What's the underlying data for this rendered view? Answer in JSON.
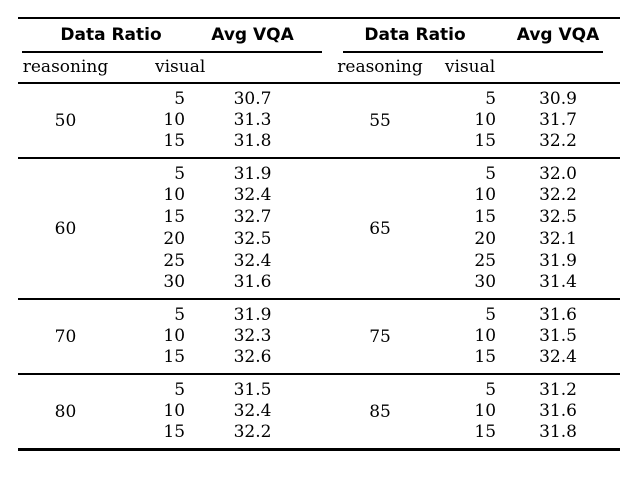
{
  "colors": {
    "background": "#ffffff",
    "text": "#000000",
    "rule": "#000000"
  },
  "table": {
    "left": {
      "header_group": "Data Ratio",
      "header_metric": "Avg VQA",
      "subheader_reasoning": "reasoning",
      "subheader_visual": "visual",
      "groups": [
        {
          "reasoning": "50",
          "rows": [
            {
              "visual": "5",
              "avg_vqa": "30.7"
            },
            {
              "visual": "10",
              "avg_vqa": "31.3"
            },
            {
              "visual": "15",
              "avg_vqa": "31.8"
            }
          ]
        },
        {
          "reasoning": "60",
          "rows": [
            {
              "visual": "5",
              "avg_vqa": "31.9"
            },
            {
              "visual": "10",
              "avg_vqa": "32.4"
            },
            {
              "visual": "15",
              "avg_vqa": "32.7",
              "bold": true
            },
            {
              "visual": "20",
              "avg_vqa": "32.5"
            },
            {
              "visual": "25",
              "avg_vqa": "32.4"
            },
            {
              "visual": "30",
              "avg_vqa": "31.6"
            }
          ]
        },
        {
          "reasoning": "70",
          "rows": [
            {
              "visual": "5",
              "avg_vqa": "31.9"
            },
            {
              "visual": "10",
              "avg_vqa": "32.3"
            },
            {
              "visual": "15",
              "avg_vqa": "32.6"
            }
          ]
        },
        {
          "reasoning": "80",
          "rows": [
            {
              "visual": "5",
              "avg_vqa": "31.5"
            },
            {
              "visual": "10",
              "avg_vqa": "32.4"
            },
            {
              "visual": "15",
              "avg_vqa": "32.2"
            }
          ]
        }
      ]
    },
    "right": {
      "header_group": "Data Ratio",
      "header_metric": "Avg VQA",
      "subheader_reasoning": "reasoning",
      "subheader_visual": "visual",
      "groups": [
        {
          "reasoning": "55",
          "rows": [
            {
              "visual": "5",
              "avg_vqa": "30.9"
            },
            {
              "visual": "10",
              "avg_vqa": "31.7"
            },
            {
              "visual": "15",
              "avg_vqa": "32.2"
            }
          ]
        },
        {
          "reasoning": "65",
          "rows": [
            {
              "visual": "5",
              "avg_vqa": "32.0"
            },
            {
              "visual": "10",
              "avg_vqa": "32.2"
            },
            {
              "visual": "15",
              "avg_vqa": "32.5"
            },
            {
              "visual": "20",
              "avg_vqa": "32.1"
            },
            {
              "visual": "25",
              "avg_vqa": "31.9"
            },
            {
              "visual": "30",
              "avg_vqa": "31.4"
            }
          ]
        },
        {
          "reasoning": "75",
          "rows": [
            {
              "visual": "5",
              "avg_vqa": "31.6"
            },
            {
              "visual": "10",
              "avg_vqa": "31.5"
            },
            {
              "visual": "15",
              "avg_vqa": "32.4"
            }
          ]
        },
        {
          "reasoning": "85",
          "rows": [
            {
              "visual": "5",
              "avg_vqa": "31.2"
            },
            {
              "visual": "10",
              "avg_vqa": "31.6"
            },
            {
              "visual": "15",
              "avg_vqa": "31.8"
            }
          ]
        }
      ]
    }
  }
}
